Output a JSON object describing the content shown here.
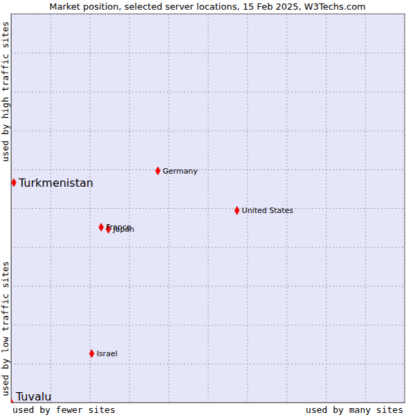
{
  "chart_data": {
    "type": "scatter",
    "title": "Market position, selected server locations, 15 Feb 2025, W3Techs.com",
    "x_axis_labels": [
      "used by fewer sites",
      "used by many sites"
    ],
    "y_axis_labels": [
      "used by low traffic sites",
      "used by high traffic sites"
    ],
    "series": [
      {
        "labels": [
          "Turkmenistan",
          "Tuvalu"
        ],
        "x": [
          0.7,
          0
        ],
        "values": [
          56.6,
          0
        ],
        "color": "#ff0000",
        "marker": "diamond"
      },
      {
        "labels": [
          "Germany",
          "United States",
          "France",
          "Japan",
          "Israel"
        ],
        "x": [
          37.3,
          57.4,
          22.9,
          24.7,
          20.5
        ],
        "values": [
          59.6,
          49.4,
          45.1,
          44.6,
          12.6
        ],
        "color": "#ff0000",
        "marker": "diamond"
      }
    ],
    "xlim": [
      0,
      100
    ],
    "ylim": [
      0,
      100
    ],
    "xticks": [
      0,
      10,
      20,
      30,
      40,
      50,
      60,
      70,
      80,
      90,
      100
    ],
    "yticks": [
      0,
      10,
      20,
      30,
      40,
      50,
      60,
      70,
      80,
      90,
      100
    ],
    "grid": true,
    "tick_labels": false
  }
}
